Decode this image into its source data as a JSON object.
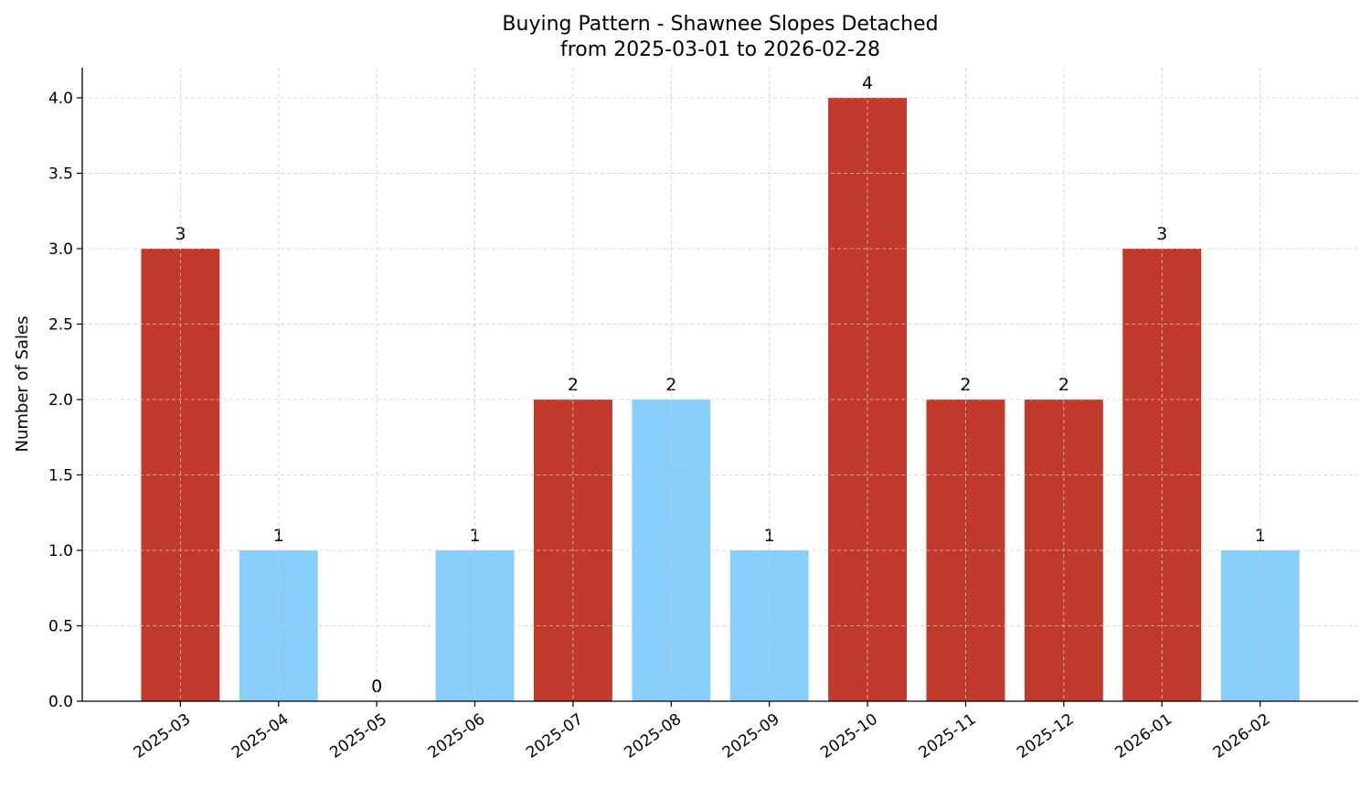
{
  "chart_data": {
    "type": "bar",
    "title": "Buying Pattern - Shawnee Slopes Detached",
    "subtitle": "from 2025-03-01 to 2026-02-28",
    "xlabel": "",
    "ylabel": "Number of Sales",
    "categories": [
      "2025-03",
      "2025-04",
      "2025-05",
      "2025-06",
      "2025-07",
      "2025-08",
      "2025-09",
      "2025-10",
      "2025-11",
      "2025-12",
      "2026-01",
      "2026-02"
    ],
    "values": [
      3,
      1,
      0,
      1,
      2,
      2,
      1,
      4,
      2,
      2,
      3,
      1
    ],
    "bar_colors": [
      "#c0392b",
      "#87cefa",
      "#87cefa",
      "#87cefa",
      "#c0392b",
      "#87cefa",
      "#87cefa",
      "#c0392b",
      "#c0392b",
      "#c0392b",
      "#c0392b",
      "#87cefa"
    ],
    "ylim": [
      0,
      4.2
    ],
    "yticks": [
      "0.0",
      "0.5",
      "1.0",
      "1.5",
      "2.0",
      "2.5",
      "3.0",
      "3.5",
      "4.0"
    ],
    "grid": true,
    "data_labels": true
  }
}
